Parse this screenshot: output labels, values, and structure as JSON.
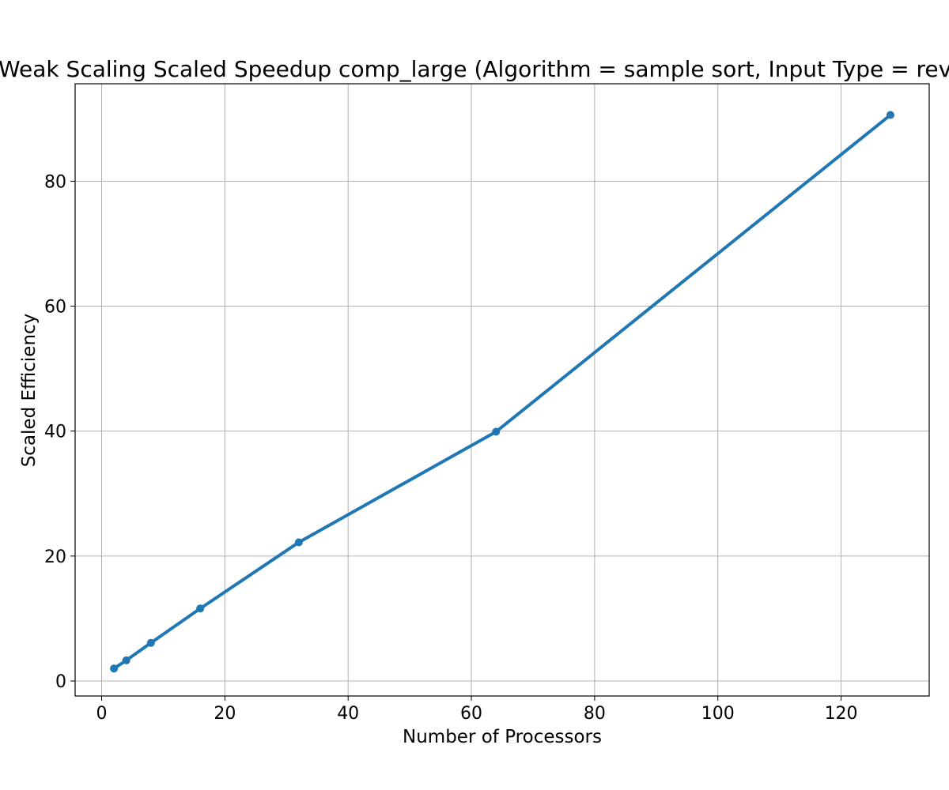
{
  "chart_data": {
    "type": "line",
    "title": "Weak Scaling Scaled Speedup comp_large (Algorithm = sample sort, Input Type = rev",
    "xlabel": "Number of Processors",
    "ylabel": "Scaled Efficiency",
    "xlim": [
      -4.3,
      134.3
    ],
    "ylim": [
      -2.4,
      95.6
    ],
    "xticks": [
      0,
      20,
      40,
      60,
      80,
      100,
      120
    ],
    "yticks": [
      0,
      20,
      40,
      60,
      80
    ],
    "grid": true,
    "series": [
      {
        "color": "#1f77b4",
        "x": [
          2,
          4,
          8,
          16,
          32,
          64,
          128
        ],
        "y": [
          2.0,
          3.3,
          6.1,
          11.6,
          22.2,
          39.9,
          90.6
        ]
      }
    ]
  }
}
